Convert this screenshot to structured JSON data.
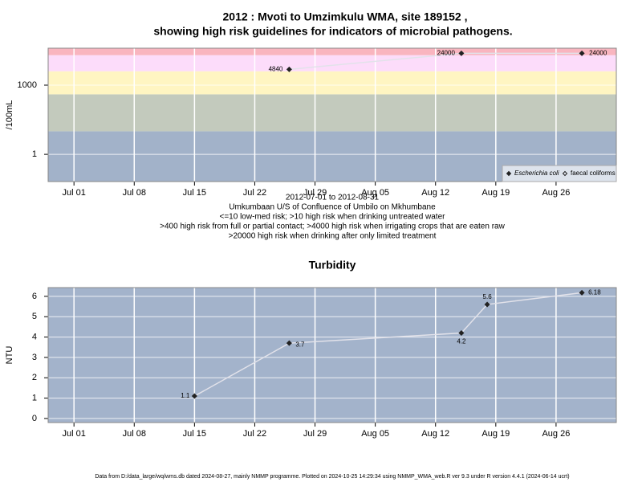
{
  "chart_data": [
    {
      "type": "line",
      "title": "2012 : Mvoti to Umzimkulu WMA, site 189152 ,",
      "subtitle": "showing high risk guidelines for indicators of microbial pathogens.",
      "y_label": "/100mL",
      "log_y": true,
      "x": [
        "2012-07-26",
        "2012-08-15",
        "2012-08-29"
      ],
      "series": [
        {
          "name": "Escherichia coli",
          "color": "#222222",
          "values": [
            4840,
            24000,
            24000
          ]
        },
        {
          "name": "faecal coliforms",
          "color": "#222222",
          "values": [
            null,
            null,
            null
          ]
        }
      ],
      "xlim": [
        "2012-06-28",
        "2012-09-02"
      ],
      "xticks": [
        {
          "value": "2012-07-01",
          "label": "Jul 01"
        },
        {
          "value": "2012-07-08",
          "label": "Jul 08"
        },
        {
          "value": "2012-07-15",
          "label": "Jul 15"
        },
        {
          "value": "2012-07-22",
          "label": "Jul 22"
        },
        {
          "value": "2012-07-29",
          "label": "Jul 29"
        },
        {
          "value": "2012-08-05",
          "label": "Aug 05"
        },
        {
          "value": "2012-08-12",
          "label": "Aug 12"
        },
        {
          "value": "2012-08-19",
          "label": "Aug 19"
        },
        {
          "value": "2012-08-26",
          "label": "Aug 26"
        }
      ],
      "ylim": [
        0.066,
        40000
      ],
      "yticks": [
        1,
        1000
      ],
      "bands": [
        {
          "from": 0.066,
          "to": 10,
          "color": "#a2b2c9"
        },
        {
          "from": 10,
          "to": 400,
          "color": "#c3cabd"
        },
        {
          "from": 400,
          "to": 4000,
          "color": "#fff5c2"
        },
        {
          "from": 4000,
          "to": 20000,
          "color": "#fcdcfa"
        },
        {
          "from": 20000,
          "to": 40000,
          "color": "#f9b5bf"
        }
      ],
      "legend": "bottom right",
      "grid": true,
      "notes": [
        "2012-07-01 to 2012-08-31",
        "Umkumbaan U/S of Confluence of Umbilo on Mkhumbane",
        "<=10 low-med risk; >10 high risk when drinking untreated water",
        ">400 high risk from full or partial contact; >4000 high risk when irrigating crops that are eaten raw",
        ">20000 high risk when drinking after only limited treatment"
      ]
    },
    {
      "type": "line",
      "title": "Turbidity",
      "y_label": "NTU",
      "x": [
        "2012-07-15",
        "2012-07-26",
        "2012-08-15",
        "2012-08-18",
        "2012-08-29"
      ],
      "series": [
        {
          "name": "Turbidity",
          "color": "#222222",
          "values": [
            1.1,
            3.7,
            4.2,
            5.6,
            6.18
          ]
        }
      ],
      "xlim": [
        "2012-06-28",
        "2012-09-02"
      ],
      "xticks": [
        {
          "value": "2012-07-01",
          "label": "Jul 01"
        },
        {
          "value": "2012-07-08",
          "label": "Jul 08"
        },
        {
          "value": "2012-07-15",
          "label": "Jul 15"
        },
        {
          "value": "2012-07-22",
          "label": "Jul 22"
        },
        {
          "value": "2012-07-29",
          "label": "Jul 29"
        },
        {
          "value": "2012-08-05",
          "label": "Aug 05"
        },
        {
          "value": "2012-08-12",
          "label": "Aug 12"
        },
        {
          "value": "2012-08-19",
          "label": "Aug 19"
        },
        {
          "value": "2012-08-26",
          "label": "Aug 26"
        }
      ],
      "ylim": [
        -0.2,
        6.43
      ],
      "yticks": [
        0,
        1,
        2,
        3,
        4,
        5,
        6
      ],
      "background": "#a3b3cb",
      "grid": true
    }
  ],
  "footer": "Data from D:/data_large/wq/wms.db dated 2024-08-27, mainly NMMP programme. Plotted on 2024-10-25 14:29:34 using NMMP_WMA_web.R ver 9.3 under R version 4.4.1 (2024-06-14 ucrt)"
}
